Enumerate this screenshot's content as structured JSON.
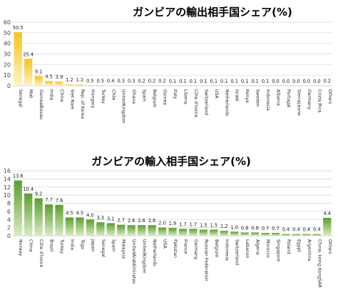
{
  "colors": {
    "export_top": "#f7c21e",
    "export_bottom": "#fff3c4",
    "import_top": "#5a9e2c",
    "import_bottom": "#d8ecc4"
  },
  "chart_data": [
    {
      "type": "bar",
      "title": "ガンビアの輸出相手国シェア(%)",
      "xlabel": "",
      "ylabel": "",
      "ylim": [
        0,
        60
      ],
      "yticks": [
        0,
        10,
        20,
        30,
        40,
        50,
        60
      ],
      "grid": true,
      "legend": "none",
      "categories": [
        "Senegal",
        "Mali",
        "GuineaBissau",
        "India",
        "China",
        "Viet Nam",
        "Rep. of Korea",
        "Hungary",
        "Turkey",
        "Chile",
        "UnitedKingdom",
        "Ghana",
        "Spain",
        "Belgium",
        "Guinea",
        "Italy",
        "Liberia",
        "Côte d'Ivoire",
        "Switzerland",
        "USA",
        "Netherlands",
        "Israel",
        "Kenya",
        "Sweden",
        "Indonesia",
        "Albania",
        "Portugal",
        "SierraLeone",
        "Germany",
        "Costa Rica",
        "Others"
      ],
      "values": [
        50.5,
        25.4,
        9.1,
        4.5,
        3.9,
        1.2,
        1.2,
        0.5,
        0.5,
        0.4,
        0.3,
        0.3,
        0.2,
        0.2,
        0.2,
        0.1,
        0.1,
        0.1,
        0.1,
        0.1,
        0.1,
        0.1,
        0.1,
        0.1,
        0.1,
        0.0,
        0.0,
        0.0,
        0.0,
        0.0,
        0.2
      ],
      "value_labels": [
        "50.5",
        "25.4",
        "9.1",
        "4.5",
        "3.9",
        "1.2",
        "1.2",
        "0.5",
        "0.5",
        "0.4",
        "0.3",
        "0.3",
        "0.2",
        "0.2",
        "0.2",
        "0.1",
        "0.1",
        "0.1",
        "0.1",
        "0.1",
        "0.1",
        "0.1",
        "0.1",
        "0.1",
        "0.1",
        "0.0",
        "0.0",
        "0.0",
        "0.0",
        "0.0",
        "0.2"
      ]
    },
    {
      "type": "bar",
      "title": "ガンビアの輸入相手国シェア(%)",
      "xlabel": "",
      "ylabel": "",
      "ylim": [
        0,
        16
      ],
      "yticks": [
        0,
        2,
        4,
        6,
        8,
        10,
        12,
        14,
        16
      ],
      "grid": true,
      "legend": "none",
      "categories": [
        "Norway",
        "China",
        "Côte d'Ivoire",
        "Brazil",
        "Turkey",
        "India",
        "Togo",
        "Japan",
        "Senegal",
        "Spain",
        "Malaysia",
        "UnitedArabEmirates",
        "UnitedKingdom",
        "Netherlands",
        "USA",
        "Pakistan",
        "France",
        "Germany",
        "Russian Federation",
        "Belgium",
        "Indonesia",
        "Switzerland",
        "Lebanon",
        "Algeria",
        "Morocco",
        "Singapore",
        "Poland",
        "Egypt",
        "Argentina",
        "China, Hong KongSAR",
        "Others"
      ],
      "values": [
        13.6,
        10.4,
        9.2,
        7.7,
        7.6,
        4.5,
        4.5,
        4.0,
        3.3,
        3.1,
        2.7,
        2.6,
        2.6,
        2.6,
        2.0,
        1.9,
        1.7,
        1.7,
        1.5,
        1.5,
        1.2,
        1.0,
        0.8,
        0.8,
        0.7,
        0.7,
        0.4,
        0.4,
        0.4,
        0.4,
        4.4
      ],
      "value_labels": [
        "13.6",
        "10.4",
        "9.2",
        "7.7",
        "7.6",
        "4.5",
        "4.5",
        "4.0",
        "3.3",
        "3.1",
        "2.7",
        "2.6",
        "2.6",
        "2.6",
        "2.0",
        "1.9",
        "1.7",
        "1.7",
        "1.5",
        "1.5",
        "1.2",
        "1.0",
        "0.8",
        "0.8",
        "0.7",
        "0.7",
        "0.4",
        "0.4",
        "0.4",
        "0.4",
        "4.4"
      ]
    }
  ]
}
